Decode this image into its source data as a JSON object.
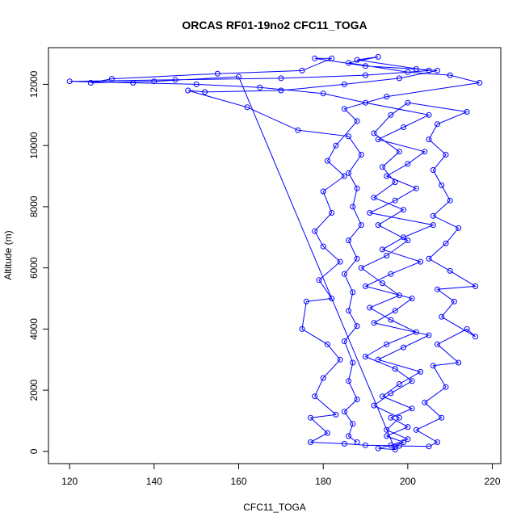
{
  "chart_data": {
    "type": "scatter",
    "title": "ORCAS RF01-19no2 CFC11_TOGA",
    "xlabel": "CFC11_TOGA",
    "ylabel": "Altitude (m)",
    "xlim": [
      115,
      222
    ],
    "ylim": [
      -400,
      13200
    ],
    "x_ticks": [
      120,
      140,
      160,
      180,
      200,
      220
    ],
    "y_ticks": [
      0,
      2000,
      4000,
      6000,
      8000,
      10000,
      12000
    ],
    "x_tick_labels": [
      "120",
      "140",
      "160",
      "180",
      "200",
      "220"
    ],
    "y_tick_labels": [
      "0",
      "2000",
      "4000",
      "6000",
      "8000",
      "10000",
      "12000"
    ],
    "series": [
      {
        "color": "#0000ff",
        "marker": "open-circle",
        "connected": true,
        "points": [
          [
            197,
            150
          ],
          [
            199,
            300
          ],
          [
            195,
            500
          ],
          [
            200,
            800
          ],
          [
            196,
            1100
          ],
          [
            201,
            1400
          ],
          [
            194,
            1800
          ],
          [
            198,
            2200
          ],
          [
            203,
            2600
          ],
          [
            193,
            3000
          ],
          [
            199,
            3400
          ],
          [
            205,
            3800
          ],
          [
            192,
            4200
          ],
          [
            197,
            4600
          ],
          [
            201,
            5000
          ],
          [
            190,
            5400
          ],
          [
            196,
            5800
          ],
          [
            203,
            6200
          ],
          [
            194,
            6600
          ],
          [
            199,
            7000
          ],
          [
            206,
            7400
          ],
          [
            191,
            7800
          ],
          [
            197,
            8200
          ],
          [
            202,
            8600
          ],
          [
            195,
            9000
          ],
          [
            200,
            9400
          ],
          [
            204,
            9800
          ],
          [
            193,
            10200
          ],
          [
            199,
            10600
          ],
          [
            205,
            11000
          ],
          [
            190,
            11400
          ],
          [
            180,
            11700
          ],
          [
            165,
            11900
          ],
          [
            150,
            12000
          ],
          [
            135,
            12050
          ],
          [
            120,
            12100
          ],
          [
            145,
            12150
          ],
          [
            170,
            12200
          ],
          [
            190,
            12300
          ],
          [
            205,
            12450
          ],
          [
            188,
            12800
          ],
          [
            193,
            12900
          ],
          [
            186,
            12700
          ],
          [
            200,
            12400
          ],
          [
            210,
            12300
          ],
          [
            217,
            12050
          ],
          [
            195,
            11600
          ],
          [
            185,
            11200
          ],
          [
            188,
            10800
          ],
          [
            183,
            10000
          ],
          [
            181,
            9500
          ],
          [
            185,
            9000
          ],
          [
            180,
            8500
          ],
          [
            182,
            7800
          ],
          [
            178,
            7200
          ],
          [
            180,
            6700
          ],
          [
            184,
            6200
          ],
          [
            179,
            5600
          ],
          [
            182,
            5000
          ],
          [
            176,
            4900
          ],
          [
            175,
            4000
          ],
          [
            181,
            3500
          ],
          [
            184,
            3000
          ],
          [
            180,
            2400
          ],
          [
            178,
            1800
          ],
          [
            183,
            1200
          ],
          [
            177,
            1100
          ],
          [
            181,
            600
          ],
          [
            177,
            300
          ],
          [
            185,
            250
          ],
          [
            190,
            200
          ],
          [
            198,
            180
          ],
          [
            205,
            160
          ],
          [
            207,
            300
          ],
          [
            202,
            700
          ],
          [
            208,
            1100
          ],
          [
            204,
            1600
          ],
          [
            209,
            2100
          ],
          [
            206,
            2800
          ],
          [
            212,
            2900
          ],
          [
            207,
            3500
          ],
          [
            214,
            4000
          ],
          [
            216,
            3750
          ],
          [
            208,
            4400
          ],
          [
            211,
            4900
          ],
          [
            207,
            5300
          ],
          [
            216,
            5400
          ],
          [
            210,
            5900
          ],
          [
            205,
            6300
          ],
          [
            209,
            6800
          ],
          [
            212,
            7300
          ],
          [
            206,
            7700
          ],
          [
            210,
            8200
          ],
          [
            208,
            8700
          ],
          [
            206,
            9200
          ],
          [
            209,
            9700
          ],
          [
            205,
            10200
          ],
          [
            207,
            10700
          ],
          [
            214,
            11100
          ],
          [
            200,
            11400
          ],
          [
            196,
            11000
          ],
          [
            192,
            10400
          ],
          [
            198,
            9800
          ],
          [
            194,
            9300
          ],
          [
            197,
            8800
          ],
          [
            192,
            8300
          ],
          [
            199,
            7900
          ],
          [
            193,
            7400
          ],
          [
            200,
            6900
          ],
          [
            195,
            6400
          ],
          [
            189,
            6000
          ],
          [
            194,
            5500
          ],
          [
            198,
            5100
          ],
          [
            191,
            4700
          ],
          [
            196,
            4300
          ],
          [
            202,
            3900
          ],
          [
            195,
            3500
          ],
          [
            190,
            3100
          ],
          [
            197,
            2700
          ],
          [
            201,
            2300
          ],
          [
            196,
            1900
          ],
          [
            192,
            1500
          ],
          [
            198,
            1100
          ],
          [
            195,
            700
          ],
          [
            200,
            400
          ],
          [
            196,
            200
          ],
          [
            193,
            100
          ],
          [
            197,
            60
          ],
          [
            160,
            12250
          ],
          [
            140,
            12100
          ],
          [
            125,
            12050
          ],
          [
            130,
            12180
          ],
          [
            155,
            12350
          ],
          [
            175,
            12450
          ],
          [
            182,
            12850
          ],
          [
            178,
            12850
          ],
          [
            190,
            12600
          ],
          [
            202,
            12500
          ],
          [
            207,
            12450
          ],
          [
            198,
            12200
          ],
          [
            185,
            12000
          ],
          [
            170,
            11800
          ],
          [
            152,
            11750
          ],
          [
            148,
            11800
          ],
          [
            162,
            11250
          ],
          [
            174,
            10500
          ],
          [
            186,
            10300
          ],
          [
            189,
            9700
          ],
          [
            186,
            9100
          ],
          [
            188,
            8600
          ],
          [
            187,
            8000
          ],
          [
            189,
            7400
          ],
          [
            186,
            6900
          ],
          [
            188,
            6300
          ],
          [
            185,
            5800
          ],
          [
            187,
            5200
          ],
          [
            186,
            4600
          ],
          [
            188,
            4100
          ],
          [
            185,
            3600
          ],
          [
            187,
            2900
          ],
          [
            186,
            2300
          ],
          [
            188,
            1700
          ],
          [
            185,
            1300
          ],
          [
            187,
            900
          ],
          [
            186,
            500
          ],
          [
            188,
            300
          ]
        ]
      }
    ]
  }
}
